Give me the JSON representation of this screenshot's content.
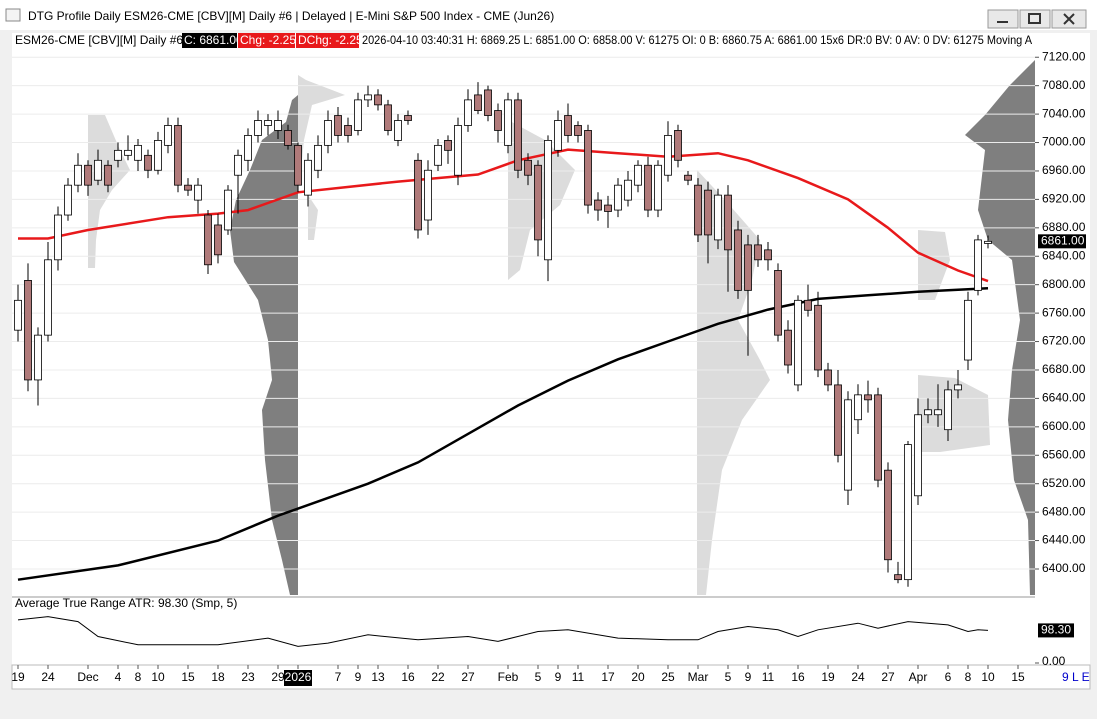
{
  "window": {
    "title": "DTG Profile Daily ESM26-CME [CBV][M]  Daily #6 | Delayed | E-Mini S&P 500 Index - CME (Jun26)",
    "corner": "9 L E"
  },
  "infobar": {
    "symbol": "ESM26-CME [CBV][M]  Daily #6",
    "close": "C: 6861.00",
    "chg": "Chg: -2.25",
    "dchg": "DChg: -2.25",
    "details": "2026-04-10 03:40:31 H: 6869.25 L: 6851.00 O: 6858.00 V: 61275 OI: 0 B: 6860.75 A: 6861.00 15x6 DR:0 BV: 0 AV: 0 DV: 61275 Moving A"
  },
  "chart_data": {
    "type": "candlestick",
    "candles": [
      [
        6736,
        6800,
        6720,
        6778
      ],
      [
        6806,
        6830,
        6650,
        6666
      ],
      [
        6666,
        6740,
        6630,
        6729
      ],
      [
        6729,
        6860,
        6720,
        6835
      ],
      [
        6835,
        6910,
        6820,
        6898
      ],
      [
        6898,
        6950,
        6890,
        6940
      ],
      [
        6940,
        6985,
        6930,
        6968
      ],
      [
        6968,
        6975,
        6925,
        6940
      ],
      [
        6947,
        6990,
        6940,
        6975
      ],
      [
        6968,
        6975,
        6930,
        6940
      ],
      [
        6975,
        7000,
        6965,
        6989
      ],
      [
        6982,
        7010,
        6975,
        6989
      ],
      [
        6975,
        7005,
        6960,
        6996
      ],
      [
        6982,
        6990,
        6950,
        6961
      ],
      [
        6961,
        7015,
        6955,
        7003
      ],
      [
        6996,
        7035,
        6985,
        7024
      ],
      [
        7024,
        7035,
        6930,
        6940
      ],
      [
        6940,
        6950,
        6925,
        6933
      ],
      [
        6919,
        6950,
        6900,
        6940
      ],
      [
        6898,
        6905,
        6815,
        6828
      ],
      [
        6884,
        6900,
        6830,
        6842
      ],
      [
        6877,
        6940,
        6870,
        6933
      ],
      [
        6954,
        6990,
        6900,
        6982
      ],
      [
        6975,
        7020,
        6960,
        7010
      ],
      [
        7010,
        7045,
        7000,
        7031
      ],
      [
        7024,
        7040,
        7010,
        7031
      ],
      [
        7017,
        7045,
        7005,
        7031
      ],
      [
        7017,
        7025,
        6990,
        6996
      ],
      [
        6996,
        7000,
        6930,
        6940
      ],
      [
        6926,
        6985,
        6910,
        6975
      ],
      [
        6961,
        7010,
        6950,
        6996
      ],
      [
        6996,
        7045,
        6985,
        7031
      ],
      [
        7038,
        7050,
        7000,
        7010
      ],
      [
        7024,
        7035,
        7000,
        7010
      ],
      [
        7017,
        7070,
        7010,
        7060
      ],
      [
        7060,
        7080,
        7050,
        7067
      ],
      [
        7067,
        7075,
        7045,
        7053
      ],
      [
        7053,
        7060,
        7010,
        7017
      ],
      [
        7003,
        7040,
        6995,
        7031
      ],
      [
        7038,
        7045,
        7025,
        7031
      ],
      [
        6975,
        6985,
        6865,
        6877
      ],
      [
        6891,
        6975,
        6870,
        6961
      ],
      [
        6968,
        7005,
        6960,
        6996
      ],
      [
        7003,
        7010,
        6970,
        6989
      ],
      [
        6954,
        7035,
        6940,
        7024
      ],
      [
        7024,
        7075,
        7015,
        7060
      ],
      [
        7067,
        7085,
        7040,
        7045
      ],
      [
        7074,
        7080,
        7030,
        7038
      ],
      [
        7045,
        7055,
        7000,
        7017
      ],
      [
        6996,
        7070,
        6985,
        7060
      ],
      [
        7060,
        7070,
        6950,
        6961
      ],
      [
        6975,
        6985,
        6940,
        6954
      ],
      [
        6968,
        6975,
        6840,
        6863
      ],
      [
        6835,
        7010,
        6805,
        7003
      ],
      [
        6989,
        7045,
        6980,
        7031
      ],
      [
        7038,
        7055,
        7000,
        7010
      ],
      [
        7024,
        7030,
        7000,
        7010
      ],
      [
        7017,
        7025,
        6900,
        6912
      ],
      [
        6919,
        6930,
        6890,
        6905
      ],
      [
        6912,
        6925,
        6880,
        6903
      ],
      [
        6905,
        6950,
        6895,
        6940
      ],
      [
        6919,
        6960,
        6910,
        6947
      ],
      [
        6940,
        6975,
        6930,
        6968
      ],
      [
        6968,
        6980,
        6895,
        6905
      ],
      [
        6905,
        6975,
        6895,
        6968
      ],
      [
        6954,
        7030,
        6945,
        7010
      ],
      [
        7017,
        7025,
        6965,
        6975
      ],
      [
        6954,
        6960,
        6940,
        6947
      ],
      [
        6940,
        6950,
        6860,
        6870
      ],
      [
        6933,
        6945,
        6830,
        6870
      ],
      [
        6863,
        6935,
        6850,
        6926
      ],
      [
        6926,
        6940,
        6790,
        6849
      ],
      [
        6877,
        6890,
        6780,
        6792
      ],
      [
        6856,
        6870,
        6700,
        6792
      ],
      [
        6856,
        6870,
        6825,
        6835
      ],
      [
        6849,
        6860,
        6820,
        6835
      ],
      [
        6820,
        6830,
        6720,
        6729
      ],
      [
        6736,
        6750,
        6675,
        6687
      ],
      [
        6659,
        6785,
        6650,
        6778
      ],
      [
        6778,
        6800,
        6755,
        6764
      ],
      [
        6771,
        6790,
        6670,
        6680
      ],
      [
        6680,
        6690,
        6650,
        6659
      ],
      [
        6659,
        6680,
        6550,
        6560
      ],
      [
        6511,
        6650,
        6490,
        6638
      ],
      [
        6610,
        6660,
        6590,
        6645
      ],
      [
        6645,
        6665,
        6620,
        6638
      ],
      [
        6645,
        6655,
        6515,
        6525
      ],
      [
        6539,
        6550,
        6395,
        6413
      ],
      [
        6392,
        6410,
        6380,
        6385
      ],
      [
        6385,
        6580,
        6375,
        6575
      ],
      [
        6503,
        6640,
        6490,
        6617
      ],
      [
        6617,
        6640,
        6605,
        6624
      ],
      [
        6617,
        6660,
        6600,
        6624
      ],
      [
        6596,
        6665,
        6580,
        6652
      ],
      [
        6652,
        6680,
        6640,
        6659
      ],
      [
        6694,
        6790,
        6680,
        6778
      ],
      [
        6792,
        6870,
        6785,
        6863
      ],
      [
        6858,
        6869.25,
        6851,
        6861
      ]
    ],
    "up_color": "#ffffff",
    "down_color": "#b07a7a",
    "series": [
      {
        "color": "#e8191b",
        "x": [
          0,
          3,
          7,
          15,
          20,
          23,
          28,
          38,
          46,
          50,
          55,
          60,
          65,
          70,
          73,
          78,
          83,
          87,
          90,
          94,
          97
        ],
        "values": [
          6865,
          6865,
          6877,
          6895,
          6900,
          6905,
          6930,
          6945,
          6955,
          6975,
          6990,
          6985,
          6980,
          6985,
          6975,
          6950,
          6920,
          6880,
          6845,
          6820,
          6805
        ]
      },
      {
        "color": "#000000",
        "x": [
          0,
          10,
          20,
          26,
          35,
          40,
          45,
          50,
          55,
          60,
          65,
          70,
          75,
          80,
          85,
          90,
          97
        ],
        "values": [
          6385,
          6405,
          6440,
          6475,
          6520,
          6550,
          6590,
          6630,
          6665,
          6695,
          6720,
          6745,
          6765,
          6780,
          6785,
          6790,
          6795
        ]
      }
    ],
    "last_value": 6861,
    "last_label": "6861.00",
    "xlim": [
      -0.6,
      101.7
    ],
    "ylim": [
      6362,
      7133
    ],
    "yticks": [
      {
        "value": 6400,
        "label": "6400.00"
      },
      {
        "value": 6440,
        "label": "6440.00"
      },
      {
        "value": 6480,
        "label": "6480.00"
      },
      {
        "value": 6520,
        "label": "6520.00"
      },
      {
        "value": 6560,
        "label": "6560.00"
      },
      {
        "value": 6600,
        "label": "6600.00"
      },
      {
        "value": 6640,
        "label": "6640.00"
      },
      {
        "value": 6680,
        "label": "6680.00"
      },
      {
        "value": 6720,
        "label": "6720.00"
      },
      {
        "value": 6760,
        "label": "6760.00"
      },
      {
        "value": 6800,
        "label": "6800.00"
      },
      {
        "value": 6840,
        "label": "6840.00"
      },
      {
        "value": 6880,
        "label": "6880.00"
      },
      {
        "value": 6920,
        "label": "6920.00"
      },
      {
        "value": 6960,
        "label": "6960.00"
      },
      {
        "value": 7000,
        "label": "7000.00"
      },
      {
        "value": 7040,
        "label": "7040.00"
      },
      {
        "value": 7080,
        "label": "7080.00"
      },
      {
        "value": 7120,
        "label": "7120.00"
      }
    ],
    "xticks": [
      {
        "value": 0,
        "label": "19"
      },
      {
        "value": 3,
        "label": "24"
      },
      {
        "value": 7,
        "label": "Dec"
      },
      {
        "value": 10,
        "label": "4"
      },
      {
        "value": 12,
        "label": "8"
      },
      {
        "value": 14,
        "label": "10"
      },
      {
        "value": 17,
        "label": "15"
      },
      {
        "value": 20,
        "label": "18"
      },
      {
        "value": 23,
        "label": "23"
      },
      {
        "value": 26,
        "label": "29"
      },
      {
        "value": 28,
        "label": "2026",
        "highlight": true
      },
      {
        "value": 32,
        "label": "7"
      },
      {
        "value": 34,
        "label": "9"
      },
      {
        "value": 36,
        "label": "13"
      },
      {
        "value": 39,
        "label": "16"
      },
      {
        "value": 42,
        "label": "22"
      },
      {
        "value": 45,
        "label": "27"
      },
      {
        "value": 49,
        "label": "Feb"
      },
      {
        "value": 52,
        "label": "5"
      },
      {
        "value": 54,
        "label": "9"
      },
      {
        "value": 56,
        "label": "11"
      },
      {
        "value": 59,
        "label": "17"
      },
      {
        "value": 62,
        "label": "20"
      },
      {
        "value": 65,
        "label": "25"
      },
      {
        "value": 68,
        "label": "Mar"
      },
      {
        "value": 71,
        "label": "5"
      },
      {
        "value": 73,
        "label": "9"
      },
      {
        "value": 75,
        "label": "11"
      },
      {
        "value": 78,
        "label": "16"
      },
      {
        "value": 81,
        "label": "19"
      },
      {
        "value": 84,
        "label": "24"
      },
      {
        "value": 87,
        "label": "27"
      },
      {
        "value": 90,
        "label": "Apr"
      },
      {
        "value": 93,
        "label": "6"
      },
      {
        "value": 95,
        "label": "8"
      },
      {
        "value": 97,
        "label": "10"
      },
      {
        "value": 100,
        "label": "15"
      }
    ],
    "grid": true
  },
  "indicator": {
    "type": "line",
    "title": "Average True Range  ATR: 98.30  (Smp, 5)",
    "color": "#000000",
    "x": [
      0,
      3,
      6,
      8,
      12,
      20,
      25,
      28,
      31,
      35,
      40,
      45,
      48,
      52,
      55,
      60,
      65,
      68,
      70,
      73,
      76,
      78,
      80,
      84,
      86,
      89,
      93,
      95,
      96,
      97
    ],
    "values": [
      130,
      140,
      125,
      80,
      55,
      55,
      75,
      50,
      60,
      85,
      70,
      80,
      65,
      95,
      100,
      75,
      70,
      70,
      95,
      110,
      100,
      80,
      100,
      120,
      105,
      125,
      115,
      95,
      100,
      98.3
    ],
    "last_value": 98.3,
    "last_label": "98.30",
    "ylim": [
      0,
      190
    ],
    "yticks": [
      {
        "value": 0,
        "label": "0.00"
      }
    ]
  }
}
